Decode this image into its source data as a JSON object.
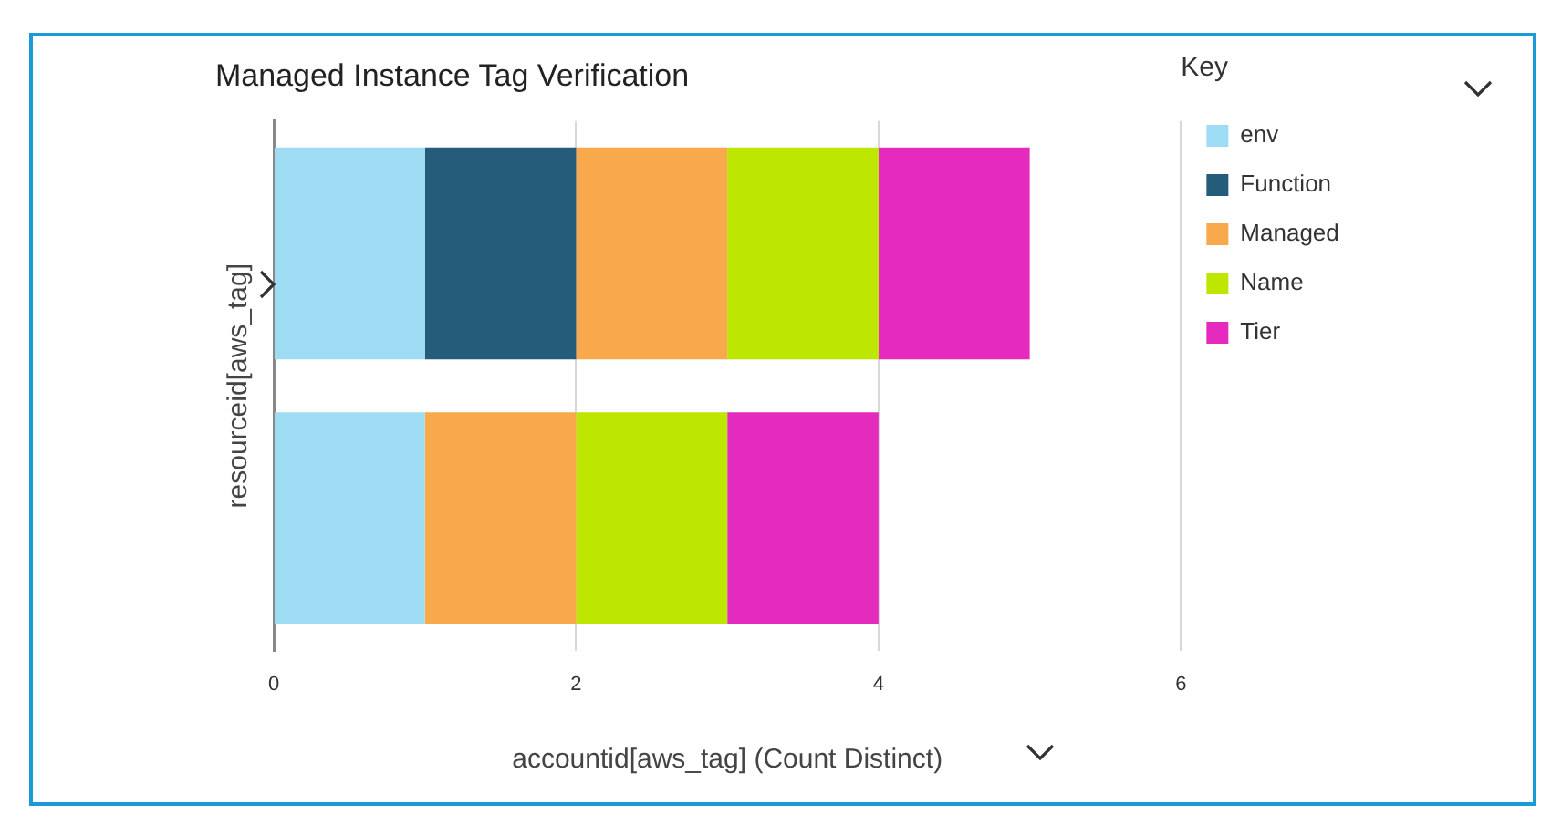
{
  "chart_data": {
    "type": "bar",
    "orientation": "horizontal",
    "stacked": true,
    "title": "Managed Instance Tag Verification",
    "xlabel": "accountid[aws_tag] (Count Distinct)",
    "ylabel": "resourceid[aws_tag]",
    "legend_title": "Key",
    "legend": "right",
    "grid": "x",
    "categories": [
      null,
      null
    ],
    "series": [
      {
        "name": "env",
        "color": "#9ddcf2",
        "values": [
          1,
          1
        ]
      },
      {
        "name": "Function",
        "color": "#255c79",
        "values": [
          1,
          null
        ]
      },
      {
        "name": "Managed",
        "color": "#f7a94b",
        "values": [
          1,
          1
        ]
      },
      {
        "name": "Name",
        "color": "#bde600",
        "values": [
          1,
          1
        ]
      },
      {
        "name": "Tier",
        "color": "#e52bbd",
        "values": [
          1,
          1
        ]
      }
    ],
    "xlim": [
      0,
      6
    ],
    "xticks": [
      0,
      2,
      4,
      6
    ]
  }
}
